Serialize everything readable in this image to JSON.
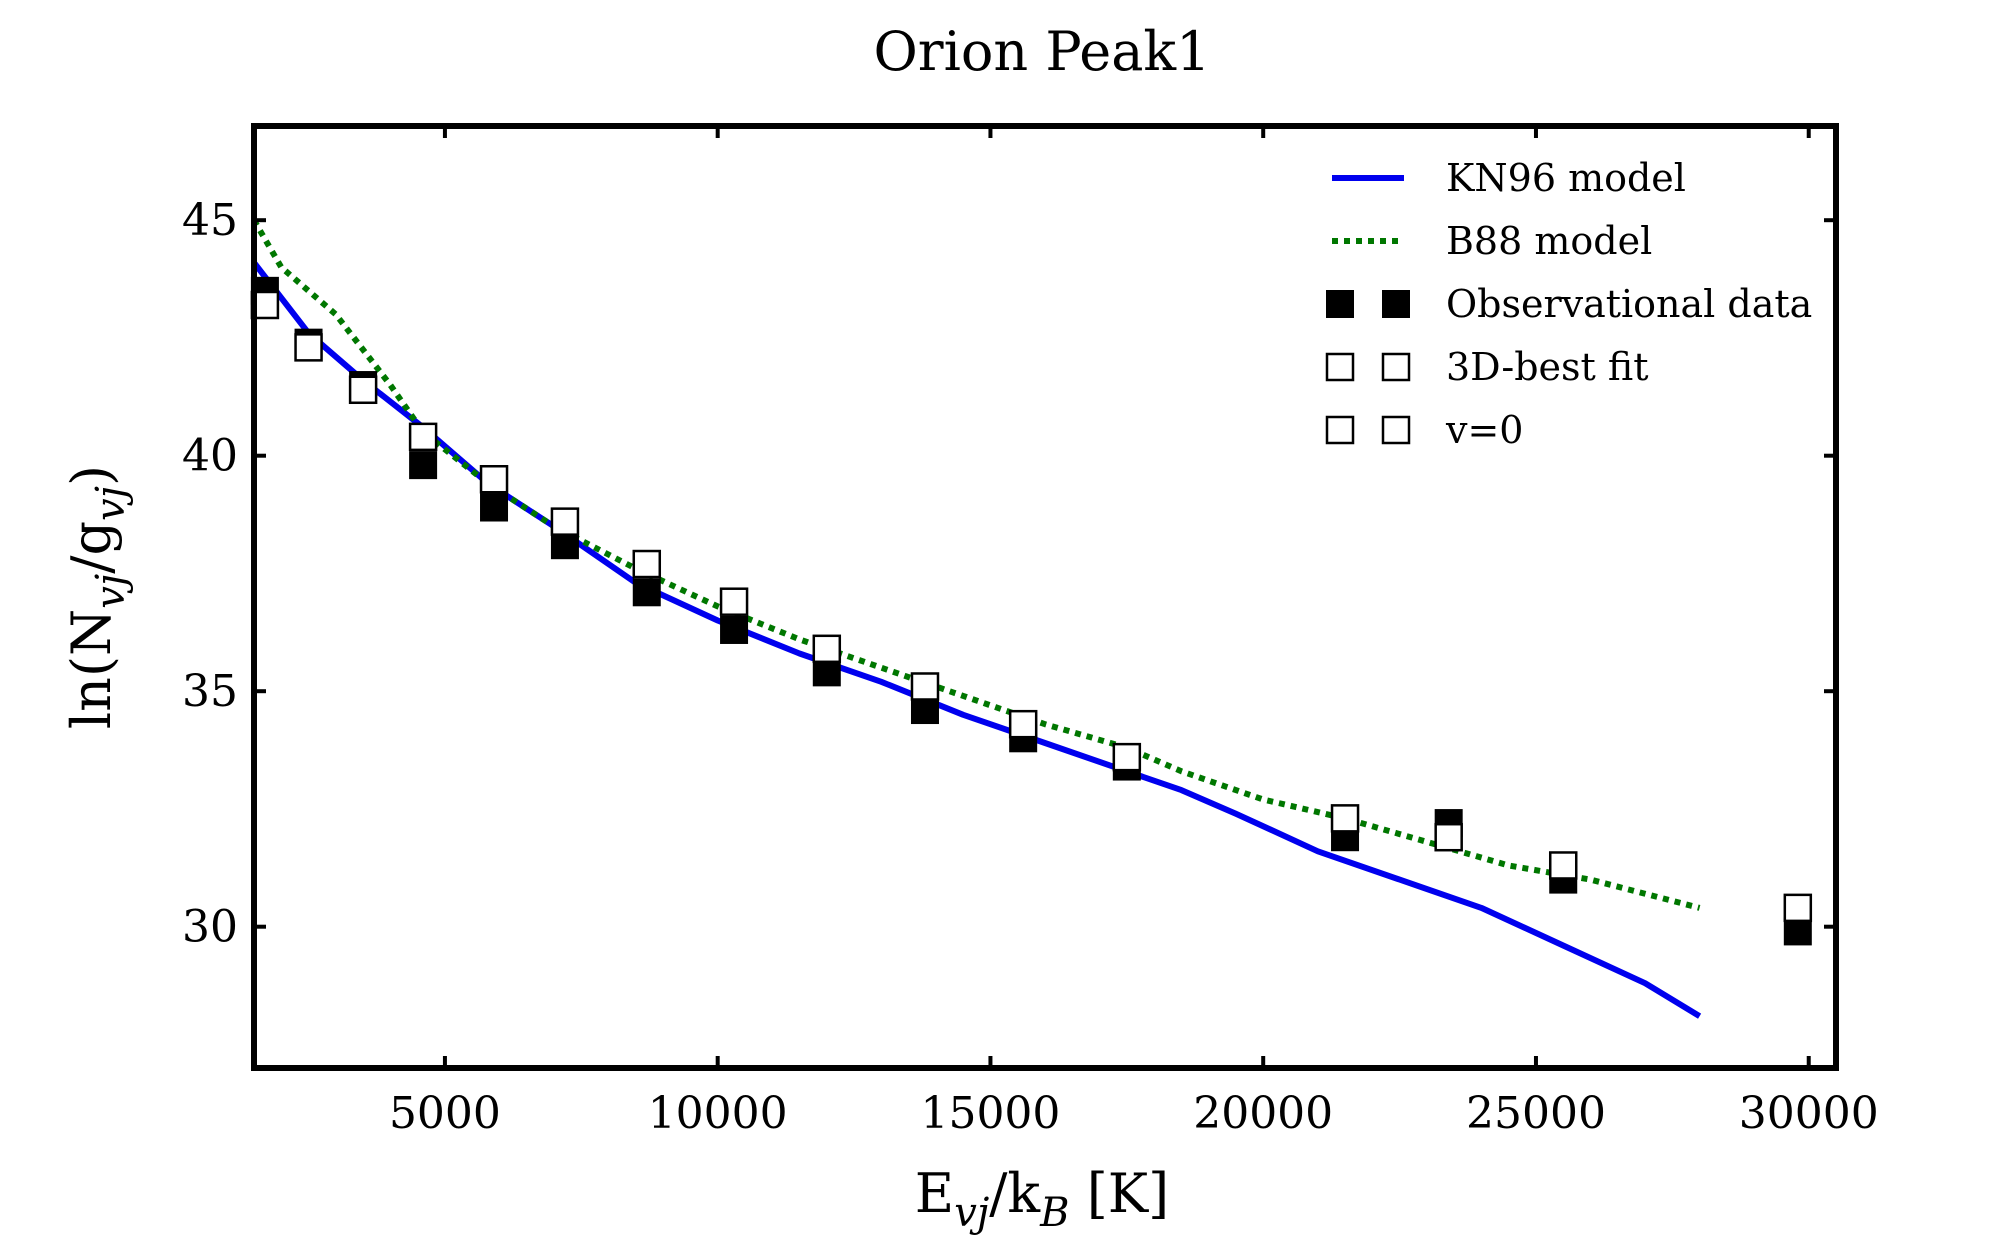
{
  "chart_data": {
    "type": "scatter",
    "title": "Orion Peak1",
    "xlabel": {
      "main": "E",
      "sub": "vj",
      "mid": "/k",
      "sub2": "B",
      "tail": " [K]"
    },
    "ylabel": {
      "main": "ln(N",
      "sub": "vj",
      "mid": "/g",
      "sub2": "vj",
      "tail": ")"
    },
    "xlim": [
      1500,
      30500
    ],
    "ylim": [
      27,
      47
    ],
    "xticks": [
      5000,
      10000,
      15000,
      20000,
      25000,
      30000
    ],
    "xtick_labels": [
      "5000",
      "10000",
      "15000",
      "20000",
      "25000",
      "30000"
    ],
    "yticks": [
      30,
      35,
      40,
      45
    ],
    "ytick_labels": [
      "30",
      "35",
      "40",
      "45"
    ],
    "grid": false,
    "legend_position": "top-right",
    "series": [
      {
        "name": "KN96 model",
        "kind": "line",
        "style": "solid",
        "color": "#0000ee",
        "x": [
          1500,
          2500,
          3500,
          4600,
          5800,
          7000,
          8500,
          10000,
          11500,
          13000,
          14500,
          16000,
          17500,
          18500,
          19500,
          21000,
          22500,
          24000,
          25500,
          27000,
          28000
        ],
        "y": [
          44.1,
          42.6,
          41.6,
          40.6,
          39.4,
          38.5,
          37.3,
          36.5,
          35.8,
          35.2,
          34.5,
          33.9,
          33.3,
          32.9,
          32.4,
          31.6,
          31.0,
          30.4,
          29.6,
          28.8,
          28.1
        ]
      },
      {
        "name": "B88 model",
        "kind": "line",
        "style": "dotted",
        "color": "#007700",
        "x": [
          1500,
          2000,
          3000,
          4000,
          4600,
          5800,
          7000,
          8500,
          10000,
          11500,
          13000,
          14500,
          16000,
          17500,
          18500,
          20000,
          21500,
          23000,
          24500,
          26000,
          28000
        ],
        "y": [
          45.0,
          44.0,
          43.0,
          41.5,
          40.5,
          39.4,
          38.5,
          37.6,
          36.8,
          36.1,
          35.5,
          34.9,
          34.3,
          33.8,
          33.3,
          32.7,
          32.3,
          31.8,
          31.3,
          31.0,
          30.4
        ]
      },
      {
        "name": "Observational data",
        "kind": "marker",
        "marker": "filled-square",
        "color": "#000000",
        "x": [
          1700,
          2500,
          3500,
          4600,
          5900,
          7200,
          8700,
          10300,
          12000,
          13800,
          15600,
          17500,
          21500,
          23400,
          25500,
          29800
        ],
        "y": [
          43.5,
          42.4,
          41.5,
          39.8,
          38.9,
          38.1,
          37.1,
          36.3,
          35.4,
          34.6,
          34.0,
          33.4,
          31.9,
          32.2,
          31.0,
          29.9
        ]
      },
      {
        "name": "3D-best fit",
        "kind": "marker",
        "marker": "open-square",
        "color": "#000000",
        "x": [
          1700,
          2500,
          3500,
          4600,
          5900,
          7200,
          8700,
          10300,
          12000,
          13800,
          15600,
          17500,
          21500,
          23400,
          25500,
          29800
        ],
        "y": [
          43.2,
          42.3,
          41.4,
          40.4,
          39.5,
          38.6,
          37.7,
          36.9,
          35.9,
          35.1,
          34.3,
          33.6,
          32.3,
          31.9,
          31.3,
          30.4
        ]
      },
      {
        "name": "v=0",
        "kind": "marker",
        "marker": "open-square",
        "color": "#000000",
        "x": [],
        "y": []
      }
    ]
  }
}
